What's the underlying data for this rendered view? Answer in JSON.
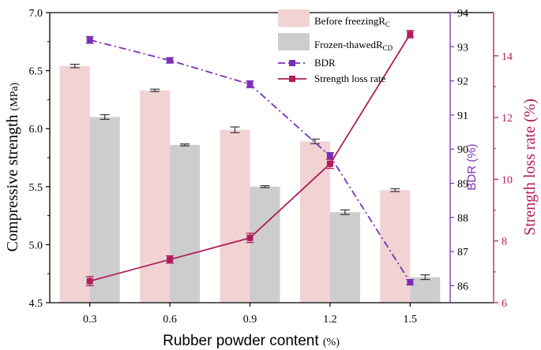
{
  "chart_data": {
    "type": "bar",
    "categories": [
      "0.3",
      "0.6",
      "0.9",
      "1.2",
      "1.5"
    ],
    "xlabel": "Rubber powder content",
    "xlabel_unit": "(%)",
    "ylabel": "Compressive strength",
    "ylabel_unit": "(MPa)",
    "ylim": [
      4.5,
      7.0
    ],
    "yticks": [
      "4.5",
      "5.0",
      "5.5",
      "6.0",
      "6.5",
      "7.0"
    ],
    "y2label": "BDR (%)",
    "y2lim": [
      85.5,
      94
    ],
    "y2ticks": [
      "86",
      "87",
      "88",
      "89",
      "90",
      "91",
      "92",
      "93",
      "94"
    ],
    "y3label": "Strength loss rate (%)",
    "y3lim": [
      6,
      15.4
    ],
    "y3ticks": [
      "6",
      "8",
      "10",
      "12",
      "14"
    ],
    "grid": false,
    "legend_position": "top-right",
    "series": [
      {
        "name": "Before freezing",
        "name_sub": "C",
        "kind": "bar",
        "axis": "left",
        "color": "#f1d3d3",
        "values": [
          6.54,
          6.33,
          5.99,
          5.89,
          5.47
        ],
        "errors": [
          0.015,
          0.01,
          0.025,
          0.02,
          0.012
        ]
      },
      {
        "name": "Frozen-thawed",
        "name_sub": "CD",
        "kind": "bar",
        "axis": "left",
        "color": "#cdcdcd",
        "values": [
          6.1,
          5.86,
          5.5,
          5.28,
          4.72
        ],
        "errors": [
          0.02,
          0.008,
          0.008,
          0.02,
          0.02
        ]
      },
      {
        "name": "BDR",
        "kind": "line",
        "axis": "right1",
        "color": "#7b2fb5",
        "dash": "dashdot",
        "values": [
          93.2,
          92.6,
          91.9,
          89.8,
          86.1
        ],
        "errors": [
          0.1,
          0.08,
          0.1,
          0.1,
          0.08
        ]
      },
      {
        "name": "Strength loss rate",
        "kind": "line",
        "axis": "right2",
        "color": "#b01c5c",
        "dash": "solid",
        "values": [
          6.7,
          7.4,
          8.1,
          10.5,
          14.7
        ],
        "errors": [
          0.15,
          0.12,
          0.15,
          0.15,
          0.12
        ]
      }
    ]
  },
  "legend": {
    "r_prefix": "R"
  }
}
